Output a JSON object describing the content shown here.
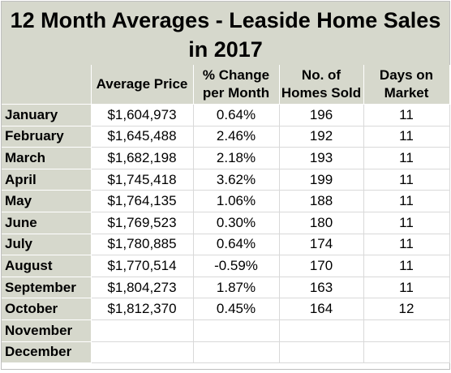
{
  "title": {
    "line1": "12 Month Averages - Leaside Home Sales",
    "line2": "in 2017"
  },
  "headers": {
    "month": "",
    "avg_price": "Average Price",
    "pct_change": "% Change per Month",
    "homes_sold": "No. of Homes Sold",
    "days_on_market": "Days on Market"
  },
  "rows": [
    {
      "month": "January",
      "avg_price": "$1,604,973",
      "pct_change": "0.64%",
      "homes_sold": "196",
      "days_on_market": "11"
    },
    {
      "month": "February",
      "avg_price": "$1,645,488",
      "pct_change": "2.46%",
      "homes_sold": "192",
      "days_on_market": "11"
    },
    {
      "month": "March",
      "avg_price": "$1,682,198",
      "pct_change": "2.18%",
      "homes_sold": "193",
      "days_on_market": "11"
    },
    {
      "month": "April",
      "avg_price": "$1,745,418",
      "pct_change": "3.62%",
      "homes_sold": "199",
      "days_on_market": "11"
    },
    {
      "month": "May",
      "avg_price": "$1,764,135",
      "pct_change": "1.06%",
      "homes_sold": "188",
      "days_on_market": "11"
    },
    {
      "month": "June",
      "avg_price": "$1,769,523",
      "pct_change": "0.30%",
      "homes_sold": "180",
      "days_on_market": "11"
    },
    {
      "month": "July",
      "avg_price": "$1,780,885",
      "pct_change": "0.64%",
      "homes_sold": "174",
      "days_on_market": "11"
    },
    {
      "month": "August",
      "avg_price": "$1,770,514",
      "pct_change": "-0.59%",
      "homes_sold": "170",
      "days_on_market": "11"
    },
    {
      "month": "September",
      "avg_price": "$1,804,273",
      "pct_change": "1.87%",
      "homes_sold": "163",
      "days_on_market": "11"
    },
    {
      "month": "October",
      "avg_price": "$1,812,370",
      "pct_change": "0.45%",
      "homes_sold": "164",
      "days_on_market": "12"
    },
    {
      "month": "November",
      "avg_price": "",
      "pct_change": "",
      "homes_sold": "",
      "days_on_market": ""
    },
    {
      "month": "December",
      "avg_price": "",
      "pct_change": "",
      "homes_sold": "",
      "days_on_market": ""
    }
  ],
  "colors": {
    "header_band": "#d6d8cc",
    "grid_line": "#d9d9d9"
  }
}
